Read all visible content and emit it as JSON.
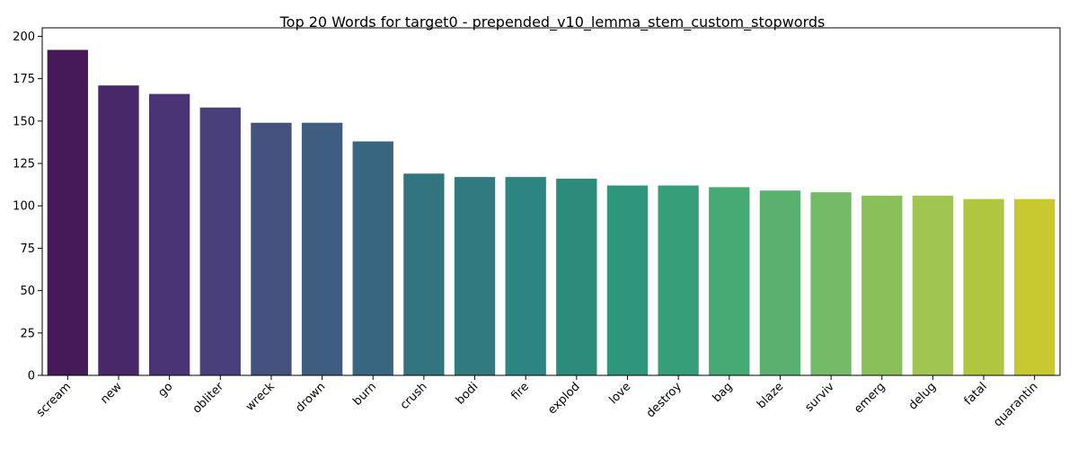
{
  "chart_data": {
    "type": "bar",
    "title": "Top 20 Words for target0 - prepended_v10_lemma_stem_custom_stopwords",
    "xlabel": "",
    "ylabel": "",
    "ylim": [
      0,
      205
    ],
    "yticks": [
      0,
      25,
      50,
      75,
      100,
      125,
      150,
      175,
      200
    ],
    "grid": false,
    "x_tick_rotation": 45,
    "categories": [
      "scream",
      "new",
      "go",
      "obliter",
      "wreck",
      "drown",
      "burn",
      "crush",
      "bodi",
      "fire",
      "explod",
      "love",
      "destroy",
      "bag",
      "blaze",
      "surviv",
      "emerg",
      "delug",
      "fatal",
      "quarantin"
    ],
    "values": [
      192,
      171,
      166,
      158,
      149,
      149,
      138,
      119,
      117,
      117,
      116,
      112,
      112,
      111,
      109,
      108,
      106,
      106,
      104,
      104
    ],
    "colors": [
      "#461a58",
      "#47296a",
      "#4a3473",
      "#483f7b",
      "#45517d",
      "#3f5d7f",
      "#386680",
      "#337481",
      "#317b80",
      "#2d8581",
      "#2b8c7b",
      "#2e977b",
      "#369f79",
      "#45a973",
      "#59b06f",
      "#73bb67",
      "#89c05a",
      "#a1c64f",
      "#b0c63f",
      "#c8c92f"
    ]
  }
}
